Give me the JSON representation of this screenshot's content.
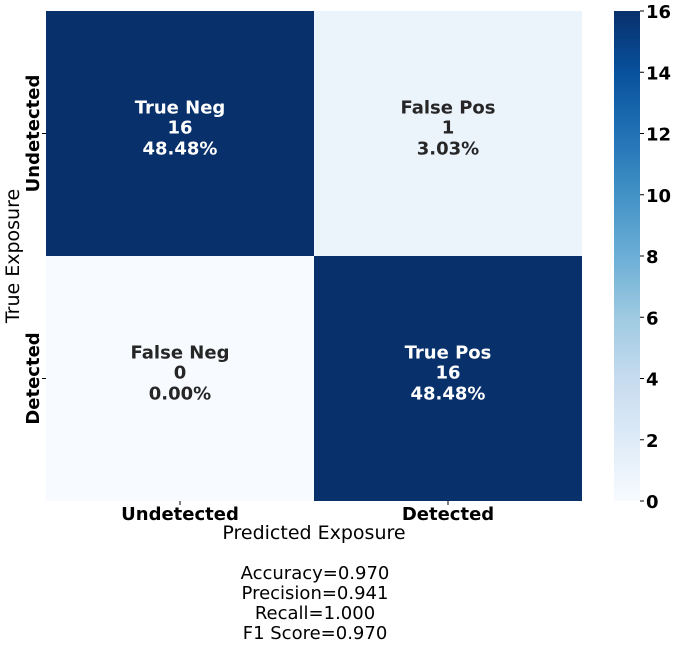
{
  "chart_data": {
    "type": "heatmap",
    "title": "",
    "xlabel": "Predicted Exposure",
    "ylabel": "True Exposure",
    "x_categories": [
      "Undetected",
      "Detected"
    ],
    "y_categories": [
      "Undetected",
      "Detected"
    ],
    "cells": [
      {
        "row": 0,
        "col": 0,
        "name": "True Neg",
        "count": 16,
        "pct": "48.48%",
        "count_label": "16"
      },
      {
        "row": 0,
        "col": 1,
        "name": "False Pos",
        "count": 1,
        "pct": "3.03%",
        "count_label": "1"
      },
      {
        "row": 1,
        "col": 0,
        "name": "False Neg",
        "count": 0,
        "pct": "0.00%",
        "count_label": "0"
      },
      {
        "row": 1,
        "col": 1,
        "name": "True Pos",
        "count": 16,
        "pct": "48.48%",
        "count_label": "16"
      }
    ],
    "colorbar": {
      "range": [
        0,
        16
      ],
      "ticks": [
        0,
        2,
        4,
        6,
        8,
        10,
        12,
        14,
        16
      ],
      "tick_labels": [
        "0",
        "2",
        "4",
        "6",
        "8",
        "10",
        "12",
        "14",
        "16"
      ],
      "colormap": [
        "#f7fbff",
        "#deebf7",
        "#c6dbef",
        "#9ecae1",
        "#6baed6",
        "#4292c6",
        "#2171b5",
        "#08519c",
        "#08306b"
      ]
    },
    "grid": false
  },
  "metrics": {
    "accuracy": "Accuracy=0.970",
    "precision": "Precision=0.941",
    "recall": "Recall=1.000",
    "f1": "F1 Score=0.970"
  }
}
